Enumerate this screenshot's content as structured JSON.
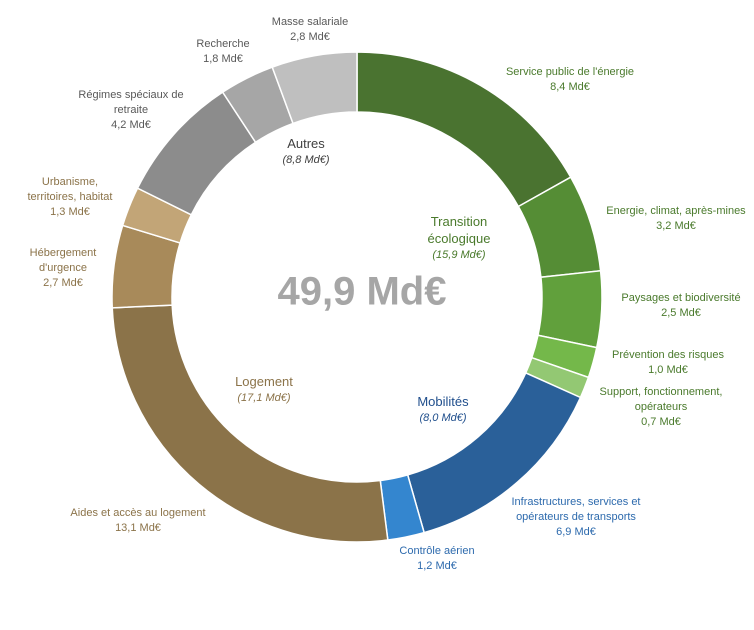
{
  "chart_data": {
    "type": "pie",
    "donut": true,
    "total": {
      "value": 49.9,
      "label": "49,9 Md€"
    },
    "categories": [
      "Service public de l'énergie",
      "Energie, climat, après-mines",
      "Paysages et biodiversité",
      "Prévention des risques",
      "Support, fonctionnement, opérateurs",
      "Infrastructures, services et opérateurs de transports",
      "Contrôle aérien",
      "Aides et accès au logement",
      "Hébergement d'urgence",
      "Urbanisme, territoires, habitat",
      "Régimes spéciaux de retraite",
      "Recherche",
      "Masse salariale"
    ],
    "values": [
      8.4,
      3.2,
      2.5,
      1.0,
      0.7,
      6.9,
      1.2,
      13.1,
      2.7,
      1.3,
      4.2,
      1.8,
      2.8
    ],
    "value_labels": [
      "8,4 Md€",
      "3,2 Md€",
      "2,5 Md€",
      "1,0 Md€",
      "0,7 Md€",
      "6,9 Md€",
      "1,2 Md€",
      "13,1 Md€",
      "2,7 Md€",
      "1,3 Md€",
      "4,2 Md€",
      "1,8 Md€",
      "2,8 Md€"
    ],
    "colors": [
      "#4a7330",
      "#558d35",
      "#61a03c",
      "#74b84a",
      "#93c873",
      "#2a6099",
      "#3486cf",
      "#8b7349",
      "#a88a5a",
      "#c2a577",
      "#8c8c8c",
      "#a6a6a6",
      "#bfbfbf"
    ],
    "label_colors": [
      "#4a7a2c",
      "#4a7a2c",
      "#4a7a2c",
      "#4a7a2c",
      "#4a7a2c",
      "#2d6aad",
      "#2d6aad",
      "#8b7349",
      "#8b7349",
      "#8b7349",
      "#595959",
      "#595959",
      "#595959"
    ],
    "groups": [
      {
        "name": "Transition écologique",
        "value": 15.9,
        "value_label": "(15,9 Md€)",
        "color": "#4a7a2c"
      },
      {
        "name": "Mobilités",
        "value": 8.0,
        "value_label": "(8,0 Md€)",
        "color": "#1f4e8c"
      },
      {
        "name": "Logement",
        "value": 17.1,
        "value_label": "(17,1 Md€)",
        "color": "#8b7349"
      },
      {
        "name": "Autres",
        "value": 8.8,
        "value_label": "(8,8 Md€)",
        "color": "#404040"
      }
    ]
  }
}
